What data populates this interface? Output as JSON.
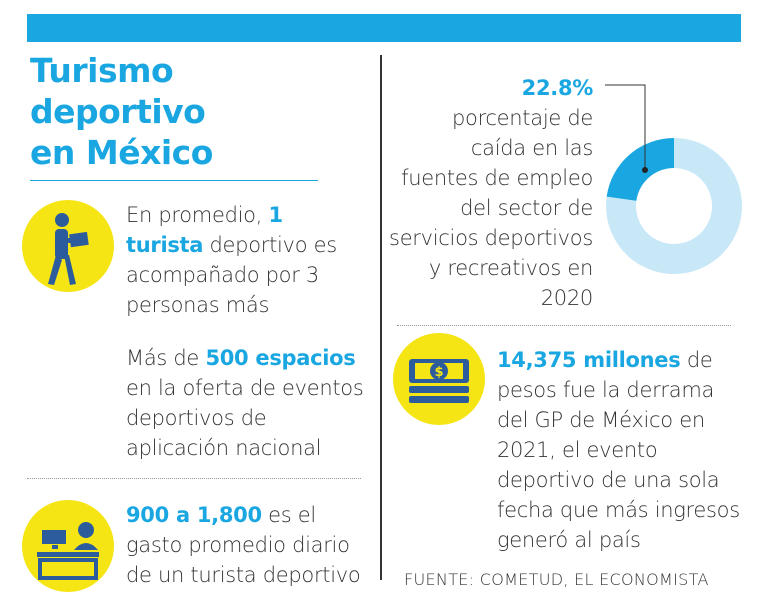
{
  "title": {
    "line1": "Turismo",
    "line2": "deportivo",
    "line3": "en México"
  },
  "stat1": {
    "pre": "En promedio, ",
    "highlight": "1 turista",
    "post": " deportivo es acompañado por 3 personas más"
  },
  "stat2": {
    "pre": "Más de ",
    "highlight": "500 espacios",
    "post": " en la oferta de eventos deportivos de aplicación nacional"
  },
  "stat3": {
    "highlight": "900 a 1,800",
    "post": " es el gasto promedio diario de un turista deportivo"
  },
  "stat4": {
    "highlight": "22.8%",
    "lines": [
      "porcentaje de",
      "caída en las",
      "fuentes de empleo",
      "del sector de",
      "servicios deportivos",
      "y recreativos en",
      "2020"
    ]
  },
  "stat5": {
    "highlight": "14,375 millones",
    "post": " de pesos fue la derrama del GP de México en 2021, el evento deportivo de una sola fecha que más ingresos generó al país"
  },
  "source": "FUENTE: COMETUD, EL ECONOMISTA",
  "chart_data": {
    "type": "pie",
    "title": "",
    "categories": [
      "caída",
      "resto"
    ],
    "values": [
      22.8,
      77.2
    ],
    "colors": [
      "#1aa7e1",
      "#c8e8f8"
    ]
  },
  "colors": {
    "accent": "#1aa7e1",
    "yellow": "#f5e514",
    "icon": "#2d5c9c"
  }
}
